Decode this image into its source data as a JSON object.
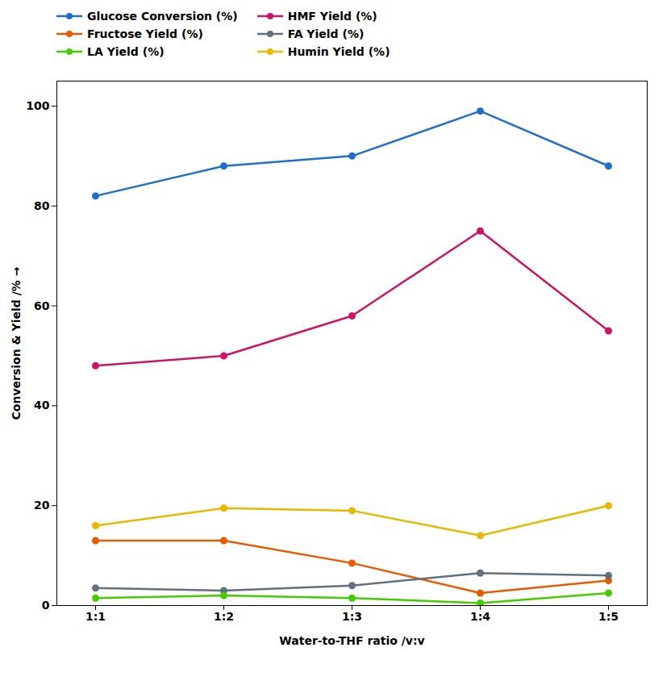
{
  "chart_data": {
    "type": "line",
    "categories": [
      "1:1",
      "1:2",
      "1:3",
      "1:4",
      "1:5"
    ],
    "series": [
      {
        "name": "Glucose Conversion (%)",
        "color": "#1e6fcc",
        "values": [
          82,
          88,
          90,
          99,
          88
        ],
        "marker": "circle",
        "line_style": "solid"
      },
      {
        "name": "HMF Yield (%)",
        "color": "#cc1466",
        "values": [
          48,
          50,
          58,
          75,
          55
        ],
        "marker": "circle",
        "line_style": "solid"
      },
      {
        "name": "Fructose Yield (%)",
        "color": "#e85a00",
        "values": [
          13,
          13,
          8.5,
          2.5,
          5
        ],
        "marker": "circle",
        "line_style": "solid"
      },
      {
        "name": "FA Yield (%)",
        "color": "#607080",
        "values": [
          3.5,
          3,
          4,
          6.5,
          6
        ],
        "marker": "circle",
        "line_style": "solid"
      },
      {
        "name": "LA Yield (%)",
        "color": "#44cc00",
        "values": [
          1.5,
          2,
          1.5,
          0.5,
          2.5
        ],
        "marker": "circle",
        "line_style": "solid"
      },
      {
        "name": "Humin Yield (%)",
        "color": "#e8b800",
        "values": [
          16,
          19.5,
          19,
          14,
          20
        ],
        "marker": "circle",
        "line_style": "solid"
      }
    ],
    "xlabel": "Water-to-THF ratio /v:v",
    "ylabel": "Conversion & Yield /%",
    "ylim": [
      0,
      105
    ],
    "yticks": [
      0,
      20,
      40,
      60,
      80,
      100
    ],
    "grid": false,
    "legend": "upper left"
  }
}
